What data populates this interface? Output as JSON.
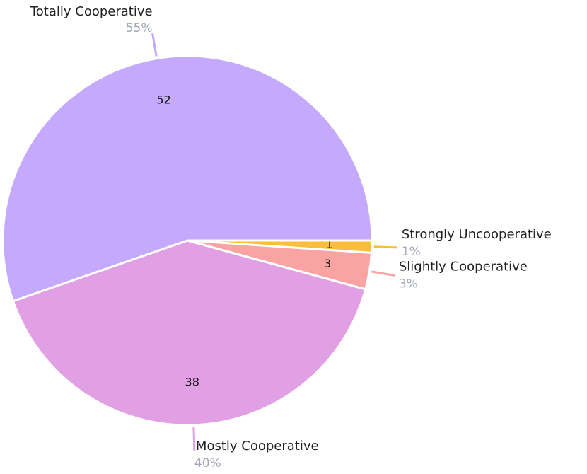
{
  "chart_data": {
    "type": "pie",
    "categories": [
      "Strongly Uncooperative",
      "Slightly Cooperative",
      "Mostly Cooperative",
      "Totally Cooperative"
    ],
    "values": [
      1,
      3,
      38,
      52
    ],
    "percent_labels": [
      "1%",
      "3%",
      "40%",
      "55%"
    ],
    "colors": [
      "#fbbd3c",
      "#f9a3a3",
      "#e2a0e4",
      "#c4a9fd"
    ]
  }
}
